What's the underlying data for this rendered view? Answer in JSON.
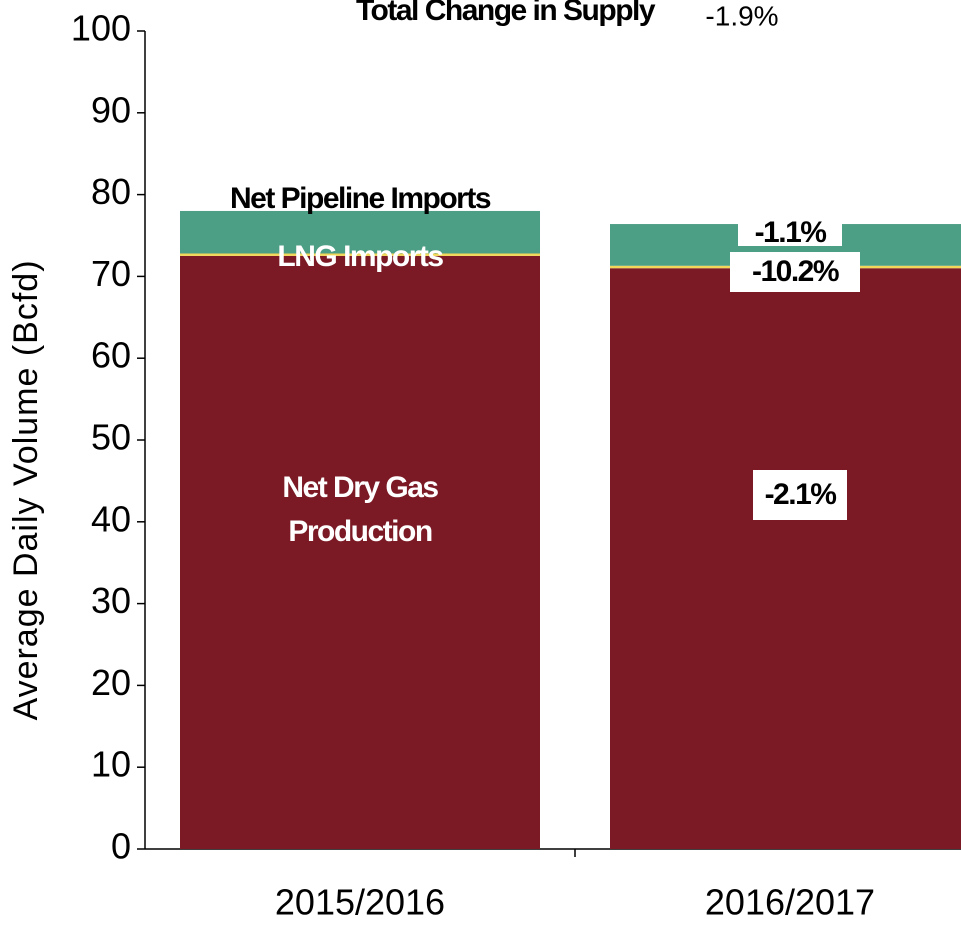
{
  "chart_data": {
    "type": "stacked_bar",
    "title": "Total Change in Supply",
    "total_change": "-1.9%",
    "y_label": "Average Daily Volume (Bcfd)",
    "categories": [
      "2015/2016",
      "2016/2017"
    ],
    "series": [
      {
        "name": "Net Dry Gas Production",
        "color": "#7b1a25",
        "values": [
          72.5,
          71.0
        ],
        "change_labels": [
          null,
          "-2.1%"
        ]
      },
      {
        "name": "LNG Imports",
        "color": "#f2d65a",
        "values": [
          0.3,
          0.3
        ],
        "change_labels": [
          null,
          "-10.2%"
        ]
      },
      {
        "name": "Net Pipeline Imports",
        "color": "#4c9e84",
        "values": [
          5.2,
          5.1
        ],
        "change_labels": [
          null,
          "-1.1%"
        ]
      }
    ],
    "ylim": [
      0,
      100
    ],
    "yticks": [
      0,
      10,
      20,
      30,
      40,
      50,
      60,
      70,
      80,
      90,
      100
    ]
  }
}
